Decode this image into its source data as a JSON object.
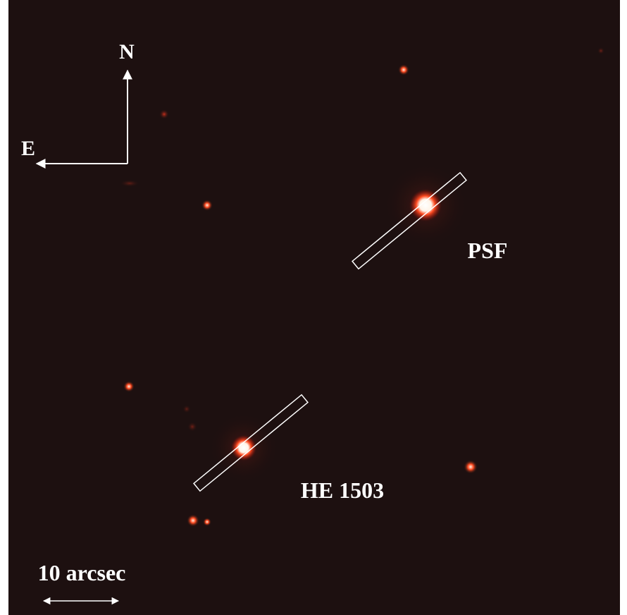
{
  "labels": {
    "north": "N",
    "east": "E",
    "psf": "PSF",
    "target": "HE 1503",
    "scale": "10 arcsec"
  }
}
